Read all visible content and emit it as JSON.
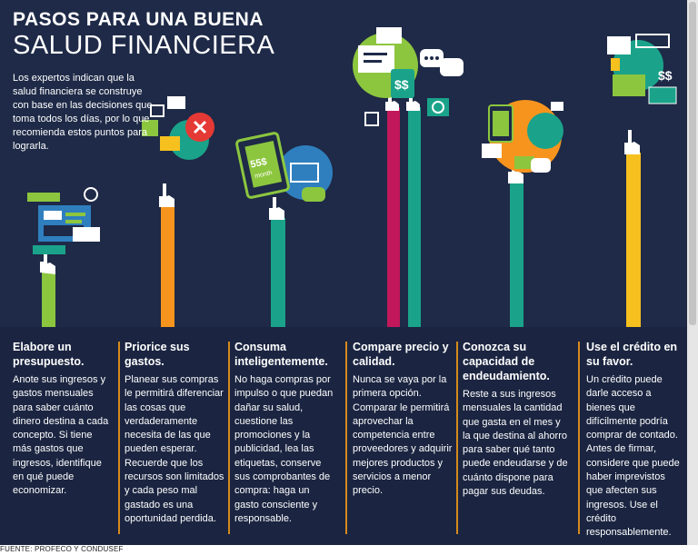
{
  "title": {
    "line1": "PASOS PARA UNA BUENA",
    "line2": "SALUD FINANCIERA"
  },
  "intro": "Los expertos indican que la salud financiera se construye con base en las decisiones que toma todos los días, por lo que recomienda estos puntos para lograrla.",
  "steps": [
    {
      "heading": "Elabore un presupuesto.",
      "body": "Anote sus ingresos y gastos mensuales para saber cuánto dinero destina a cada concepto. Si tiene más gastos que ingresos, identifique en qué puede economizar."
    },
    {
      "heading": "Priorice sus gastos.",
      "body": "Planear sus compras le permitirá diferenciar las cosas que verdaderamente necesita de las que pueden esperar. Recuerde que los recursos son limitados y cada peso mal gastado es una oportunidad perdida."
    },
    {
      "heading": "Consuma inteligentemente.",
      "body": "No haga compras por impulso o que puedan dañar su salud, cuestione las promociones y la publicidad, lea las etiquetas, conserve sus comprobantes de compra: haga un gasto consciente y responsable."
    },
    {
      "heading": "Compare precio y calidad.",
      "body": "Nunca se vaya por la primera opción. Comparar le permitirá aprovechar la competencia entre proveedores y adquirir mejores productos y servicios a menor precio."
    },
    {
      "heading": "Conozca su capacidad de endeudamiento.",
      "body": "Reste a sus ingresos mensuales la cantidad que gasta en el mes y la que destina al ahorro para saber qué tanto puede endeudarse y de cuánto dispone para pagar sus deudas."
    },
    {
      "heading": "Use el crédito en su favor.",
      "body": "Un crédito puede darle acceso a bienes que difícilmente podría comprar de contado. Antes de firmar, considere que puede haber imprevistos que afecten sus ingresos. Use el crédito responsablemente."
    }
  ],
  "phone_text": {
    "amount": "55$",
    "label": "month"
  },
  "money_symbols": [
    "$$",
    "$$"
  ],
  "footer": "FUENTE: PROFECO Y CONDUSEF",
  "colors": {
    "background": "#1e2a47",
    "green": "#8cc63f",
    "orange": "#f7941d",
    "teal": "#1aa38a",
    "magenta": "#c2185b",
    "yellow": "#f6c01f",
    "divider": "#d58a1b"
  }
}
